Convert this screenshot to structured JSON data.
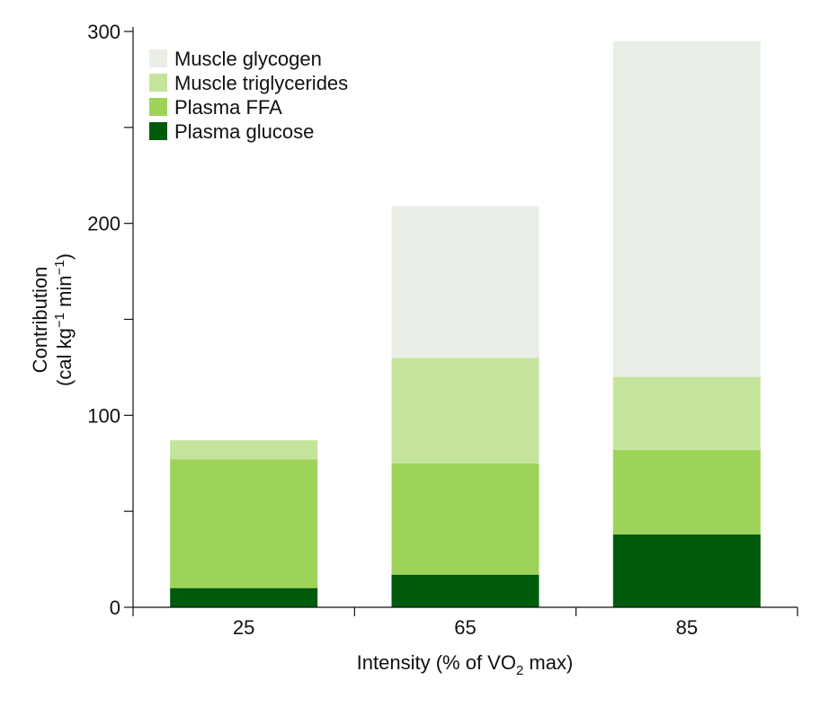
{
  "chart_data": {
    "type": "bar",
    "stacked": true,
    "categories": [
      "25",
      "65",
      "85"
    ],
    "xlabel": "Intensity (% of VO2 max)",
    "xlabel_parts": {
      "before": "Intensity (% of VO",
      "sub": "2",
      "after": " max)"
    },
    "ylabel_line1": "Contribution",
    "ylabel_line2_parts": {
      "a": "(cal kg",
      "sup1": "−1",
      "b": " min",
      "sup2": "−1",
      "c": ")"
    },
    "ylim": [
      0,
      300
    ],
    "yticks": [
      0,
      100,
      200,
      300
    ],
    "yminor": [
      50,
      150,
      250
    ],
    "grid": false,
    "legend_position": "top-left",
    "series": [
      {
        "name": "Plasma glucose",
        "color": "#005a0c",
        "values": [
          10,
          17,
          38
        ]
      },
      {
        "name": "Plasma FFA",
        "color": "#9ed35a",
        "values": [
          67,
          58,
          44
        ]
      },
      {
        "name": "Muscle triglycerides",
        "color": "#c5e49b",
        "values": [
          10,
          55,
          38
        ]
      },
      {
        "name": "Muscle glycogen",
        "color": "#e9efe7",
        "values": [
          0,
          79,
          175
        ]
      }
    ]
  }
}
